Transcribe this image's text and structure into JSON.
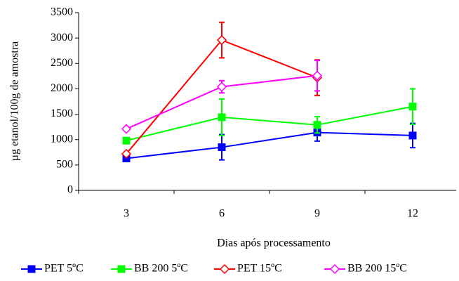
{
  "chart_data": {
    "type": "line",
    "x_label": "Dias após processamento",
    "y_label": "µg etanol/100g de amostra",
    "categories": [
      "3",
      "6",
      "9",
      "12"
    ],
    "ylim": [
      0,
      3500
    ],
    "yticks": [
      0,
      500,
      1000,
      1500,
      2000,
      2500,
      3000,
      3500
    ],
    "legend": "bottom",
    "series": [
      {
        "name": "PET 5ºC",
        "color": "#0000ff",
        "marker": "square",
        "values": [
          630,
          850,
          1140,
          1080
        ],
        "errors": [
          30,
          250,
          170,
          240
        ]
      },
      {
        "name": "BB 200 5ºC",
        "color": "#00ff00",
        "marker": "square",
        "values": [
          980,
          1440,
          1290,
          1650
        ],
        "errors": [
          30,
          360,
          160,
          350
        ]
      },
      {
        "name": "PET 15ºC",
        "color": "#ff0000",
        "marker": "diamond-open",
        "values": [
          720,
          2960,
          2220,
          null
        ],
        "errors": [
          30,
          350,
          350,
          null
        ]
      },
      {
        "name": "BB 200 15ºC",
        "color": "#ff00ff",
        "marker": "diamond-open",
        "values": [
          1210,
          2040,
          2260,
          null
        ],
        "errors": [
          30,
          120,
          300,
          null
        ]
      }
    ]
  }
}
